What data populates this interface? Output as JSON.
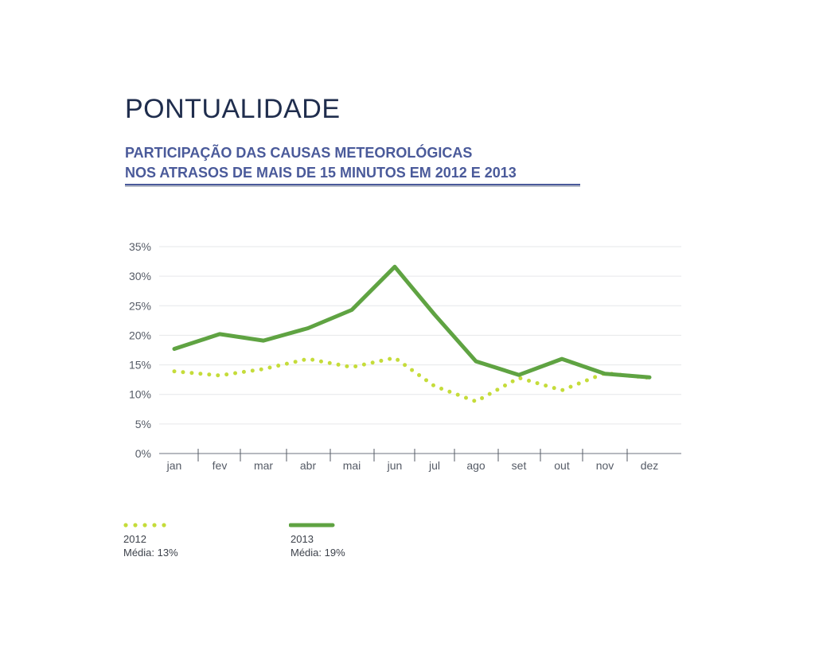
{
  "title": "PONTUALIDADE",
  "subtitle_line1": "PARTICIPAÇÃO DAS CAUSAS METEOROLÓGICAS",
  "subtitle_line2": "NOS ATRASOS DE MAIS DE 15 MINUTOS EM 2012 E 2013",
  "colors": {
    "series_2012": "#c5dc3a",
    "series_2013": "#5fa342",
    "title": "#1f2d4d",
    "subtitle": "#4a5a9a"
  },
  "chart_data": {
    "type": "line",
    "title": "",
    "xlabel": "",
    "ylabel": "",
    "ylim": [
      0,
      35
    ],
    "yticks": [
      "0%",
      "5%",
      "10%",
      "15%",
      "20%",
      "25%",
      "30%",
      "35%"
    ],
    "ytick_values": [
      0,
      5,
      10,
      15,
      20,
      25,
      30,
      35
    ],
    "grid": true,
    "legend_placement": "bottom-left",
    "categories": [
      "jan",
      "fev",
      "mar",
      "abr",
      "mai",
      "jun",
      "jul",
      "ago",
      "set",
      "out",
      "nov",
      "dez"
    ],
    "series": [
      {
        "name": "2012",
        "style": "dotted",
        "color": "#c5dc3a",
        "values": [
          13.9,
          13.2,
          14.3,
          16.0,
          14.6,
          16.2,
          11.4,
          8.8,
          12.8,
          10.7,
          13.6,
          12.8
        ]
      },
      {
        "name": "2013",
        "style": "solid",
        "color": "#5fa342",
        "values": [
          17.7,
          20.2,
          19.1,
          21.2,
          24.3,
          31.6,
          23.5,
          15.6,
          13.3,
          16.0,
          13.5,
          12.9
        ]
      }
    ]
  },
  "legend": [
    {
      "year": "2012",
      "average": "Média: 13%"
    },
    {
      "year": "2013",
      "average": "Média: 19%"
    }
  ]
}
